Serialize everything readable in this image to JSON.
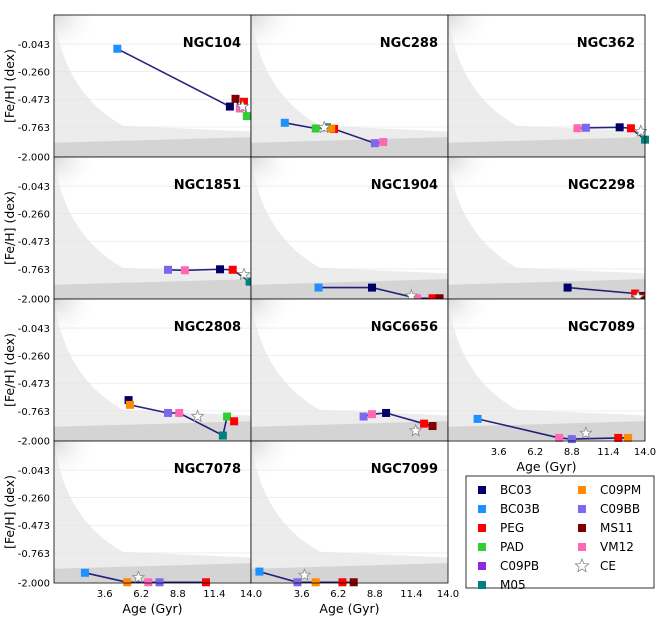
{
  "chart_data": {
    "type": "line",
    "x_axis": {
      "label": "Age (Gyr)",
      "range": [
        0.0,
        14.0
      ],
      "ticks": [
        "3.6",
        "6.2",
        "8.8",
        "11.4",
        "14.0"
      ]
    },
    "y_axis": {
      "label": "[Fe/H] (dex)",
      "range": [
        -2.0,
        0.0
      ],
      "ticks": [
        "-0.043",
        "-0.260",
        "-0.473",
        "-0.763",
        "-2.000"
      ]
    },
    "panels": [
      {
        "name": "NGC104",
        "markers": {
          "BC03B": [
            4.5,
            -0.08
          ],
          "BC03": [
            12.5,
            -0.55
          ],
          "PAD": [
            13.7,
            -0.65
          ],
          "MS11": [
            12.9,
            -0.47
          ],
          "VM12": [
            13.2,
            -0.57
          ],
          "PEG": [
            13.5,
            -0.5
          ],
          "CE": [
            13.4,
            -0.55
          ]
        }
      },
      {
        "name": "NGC288",
        "markers": {
          "BC03B": [
            2.4,
            -0.72
          ],
          "PAD": [
            4.6,
            -0.83
          ],
          "M05": [
            5.4,
            -0.78
          ],
          "PEG": [
            5.9,
            -0.85
          ],
          "C09PM": [
            5.7,
            -0.83
          ],
          "C09BB": [
            8.8,
            -1.45
          ],
          "VM12": [
            9.4,
            -1.4
          ],
          "CE": [
            5.2,
            -0.79
          ]
        }
      },
      {
        "name": "NGC362",
        "markers": {
          "BC03": [
            12.2,
            -0.78
          ],
          "C09BB": [
            9.8,
            -0.8
          ],
          "VM12": [
            9.2,
            -0.82
          ],
          "PEG": [
            13.0,
            -0.82
          ],
          "M05": [
            14.0,
            -1.3
          ],
          "CE": [
            13.7,
            -0.95
          ]
        }
      },
      {
        "name": "NGC1851",
        "markers": {
          "C09BB": [
            8.1,
            -0.8
          ],
          "VM12": [
            9.3,
            -0.82
          ],
          "BC03": [
            11.8,
            -0.78
          ],
          "PEG": [
            12.7,
            -0.8
          ],
          "M05": [
            13.9,
            -1.3
          ],
          "CE": [
            13.5,
            -1.0
          ]
        }
      },
      {
        "name": "NGC1904",
        "markers": {
          "BC03B": [
            4.8,
            -1.55
          ],
          "BC03": [
            8.6,
            -1.55
          ],
          "VM12": [
            11.8,
            -2.0
          ],
          "PEG": [
            12.9,
            -2.0
          ],
          "MS11": [
            13.4,
            -2.0
          ],
          "CE": [
            11.4,
            -1.9
          ]
        }
      },
      {
        "name": "NGC2298",
        "markers": {
          "BC03": [
            8.5,
            -1.55
          ],
          "PEG": [
            13.3,
            -1.8
          ],
          "MS11": [
            13.7,
            -1.9
          ],
          "CE": [
            13.5,
            -1.95
          ]
        }
      },
      {
        "name": "NGC2808",
        "markers": {
          "BC03": [
            5.3,
            -0.65
          ],
          "C09PM": [
            5.4,
            -0.7
          ],
          "C09BB": [
            8.1,
            -0.85
          ],
          "VM12": [
            8.9,
            -0.85
          ],
          "PAD": [
            12.3,
            -1.0
          ],
          "M05": [
            12.0,
            -1.8
          ],
          "PEG": [
            12.8,
            -1.2
          ],
          "CE": [
            10.2,
            -1.0
          ]
        }
      },
      {
        "name": "NGC6656",
        "markers": {
          "BC03": [
            9.6,
            -0.85
          ],
          "C09BB": [
            8.0,
            -1.0
          ],
          "VM12": [
            8.6,
            -0.9
          ],
          "PEG": [
            12.3,
            -1.3
          ],
          "MS11": [
            12.9,
            -1.4
          ],
          "CE": [
            11.7,
            -1.6
          ]
        }
      },
      {
        "name": "NGC7089",
        "markers": {
          "BC03B": [
            2.1,
            -1.1
          ],
          "VM12": [
            7.9,
            -1.9
          ],
          "C09BB": [
            8.8,
            -1.95
          ],
          "PEG": [
            12.1,
            -1.9
          ],
          "C09PM": [
            12.8,
            -1.9
          ],
          "CE": [
            9.8,
            -1.7
          ]
        }
      },
      {
        "name": "NGC7078",
        "markers": {
          "BC03B": [
            2.2,
            -1.6
          ],
          "C09PM": [
            5.2,
            -2.0
          ],
          "VM12": [
            6.7,
            -2.0
          ],
          "C09BB": [
            7.5,
            -2.0
          ],
          "PEG": [
            10.8,
            -2.0
          ],
          "CE": [
            6.0,
            -1.8
          ]
        }
      },
      {
        "name": "NGC7099",
        "markers": {
          "BC03B": [
            0.6,
            -1.55
          ],
          "C09BB": [
            3.3,
            -2.0
          ],
          "C09PM": [
            4.6,
            -2.0
          ],
          "PEG": [
            6.5,
            -2.0
          ],
          "MS11": [
            7.3,
            -2.0
          ],
          "CE": [
            3.8,
            -1.7
          ]
        }
      }
    ],
    "legend": [
      {
        "key": "BC03",
        "label": "BC03",
        "color": "#000066",
        "marker": "square"
      },
      {
        "key": "C09PM",
        "label": "C09PM",
        "color": "#ff8c00",
        "marker": "square"
      },
      {
        "key": "BC03B",
        "label": "BC03B",
        "color": "#1e90ff",
        "marker": "square"
      },
      {
        "key": "C09BB",
        "label": "C09BB",
        "color": "#7b68ee",
        "marker": "square"
      },
      {
        "key": "PEG",
        "label": "PEG",
        "color": "#ff0000",
        "marker": "square"
      },
      {
        "key": "MS11",
        "label": "MS11",
        "color": "#800000",
        "marker": "square"
      },
      {
        "key": "PAD",
        "label": "PAD",
        "color": "#32cd32",
        "marker": "square"
      },
      {
        "key": "VM12",
        "label": "VM12",
        "color": "#ff69b4",
        "marker": "square"
      },
      {
        "key": "C09PB",
        "label": "C09PB",
        "color": "#8a2be2",
        "marker": "square"
      },
      {
        "key": "CE",
        "label": "CE",
        "color": "#ffffff",
        "marker": "star"
      },
      {
        "key": "M05",
        "label": "M05",
        "color": "#008080",
        "marker": "square"
      }
    ]
  }
}
